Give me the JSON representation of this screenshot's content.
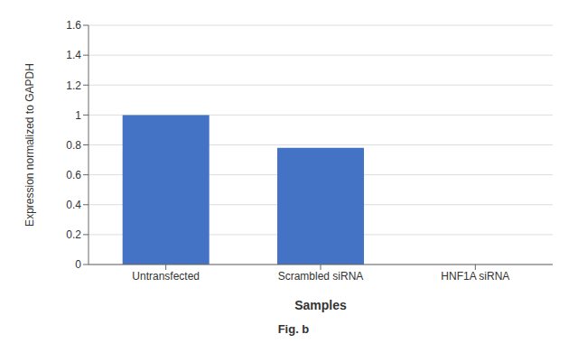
{
  "chart_data": {
    "type": "bar",
    "categories": [
      "Untransfected",
      "Scrambled siRNA",
      "HNF1A siRNA"
    ],
    "values": [
      1.0,
      0.78,
      0.0
    ],
    "color": "#4472c4",
    "xlabel": "Samples",
    "ylabel": "Expression normalized to GAPDH",
    "ylim": [
      0,
      1.6
    ],
    "yticks": [
      0,
      0.2,
      0.4,
      0.6,
      0.8,
      1,
      1.2,
      1.4,
      1.6
    ],
    "grid": true,
    "annotations": [
      "Fig. b"
    ]
  }
}
